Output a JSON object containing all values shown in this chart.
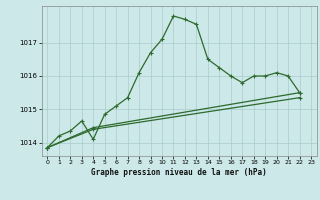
{
  "title": "Graphe pression niveau de la mer (hPa)",
  "bg_color": "#cce8e8",
  "grid_color": "#aacccc",
  "line_color": "#2d6a2d",
  "xlim": [
    -0.5,
    23.5
  ],
  "ylim": [
    1013.6,
    1018.1
  ],
  "yticks": [
    1014,
    1015,
    1016,
    1017
  ],
  "xticks": [
    0,
    1,
    2,
    3,
    4,
    5,
    6,
    7,
    8,
    9,
    10,
    11,
    12,
    13,
    14,
    15,
    16,
    17,
    18,
    19,
    20,
    21,
    22,
    23
  ],
  "series1": [
    [
      0,
      1013.85
    ],
    [
      1,
      1014.2
    ],
    [
      2,
      1014.35
    ],
    [
      3,
      1014.65
    ],
    [
      4,
      1014.1
    ],
    [
      5,
      1014.85
    ],
    [
      6,
      1015.1
    ],
    [
      7,
      1015.35
    ],
    [
      8,
      1016.1
    ],
    [
      9,
      1016.7
    ],
    [
      10,
      1017.1
    ],
    [
      11,
      1017.8
    ],
    [
      12,
      1017.7
    ],
    [
      13,
      1017.55
    ],
    [
      14,
      1016.5
    ],
    [
      15,
      1016.25
    ],
    [
      16,
      1016.0
    ],
    [
      17,
      1015.8
    ],
    [
      18,
      1016.0
    ],
    [
      19,
      1016.0
    ],
    [
      20,
      1016.1
    ],
    [
      21,
      1016.0
    ],
    [
      22,
      1015.5
    ]
  ],
  "series2": [
    [
      0,
      1013.85
    ],
    [
      4,
      1014.45
    ],
    [
      22,
      1015.5
    ]
  ],
  "series3": [
    [
      0,
      1013.85
    ],
    [
      4,
      1014.4
    ],
    [
      22,
      1015.35
    ]
  ]
}
